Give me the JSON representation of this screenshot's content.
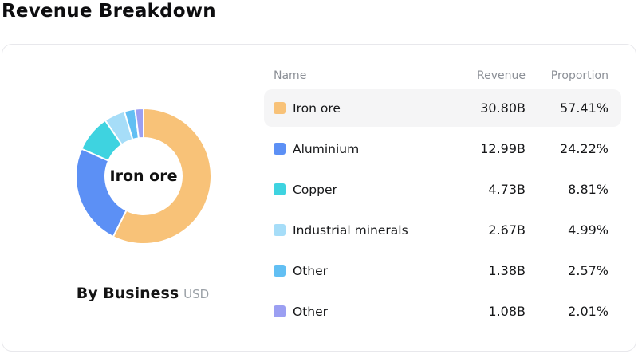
{
  "page": {
    "title": "Revenue Breakdown"
  },
  "card": {
    "caption": {
      "label": "By Business",
      "unit": "USD"
    },
    "donut_center_label": "Iron ore"
  },
  "table": {
    "headers": {
      "name": "Name",
      "revenue": "Revenue",
      "proportion": "Proportion"
    },
    "highlight_row_index": 0,
    "rows": [
      {
        "name": "Iron ore",
        "revenue": "30.80B",
        "proportion": "57.41%",
        "color": "#F8C278"
      },
      {
        "name": "Aluminium",
        "revenue": "12.99B",
        "proportion": "24.22%",
        "color": "#5C90F5"
      },
      {
        "name": "Copper",
        "revenue": "4.73B",
        "proportion": "8.81%",
        "color": "#3ED3E0"
      },
      {
        "name": "Industrial minerals",
        "revenue": "2.67B",
        "proportion": "4.99%",
        "color": "#A6DDF8"
      },
      {
        "name": "Other",
        "revenue": "1.38B",
        "proportion": "2.57%",
        "color": "#62BFF3"
      },
      {
        "name": "Other",
        "revenue": "1.08B",
        "proportion": "2.01%",
        "color": "#9B9FF2"
      }
    ]
  },
  "chart_data": {
    "type": "pie",
    "title": "Revenue Breakdown",
    "subtitle": "By Business (USD)",
    "donut": true,
    "start_angle_deg": 0,
    "direction": "clockwise",
    "center_label": "Iron ore",
    "categories": [
      "Iron ore",
      "Aluminium",
      "Copper",
      "Industrial minerals",
      "Other",
      "Other"
    ],
    "values_billions": [
      30.8,
      12.99,
      4.73,
      2.67,
      1.38,
      1.08
    ],
    "proportions_pct": [
      57.41,
      24.22,
      8.81,
      4.99,
      2.57,
      2.01
    ],
    "colors": [
      "#F8C278",
      "#5C90F5",
      "#3ED3E0",
      "#A6DDF8",
      "#62BFF3",
      "#9B9FF2"
    ],
    "legend_position": "right-table"
  }
}
